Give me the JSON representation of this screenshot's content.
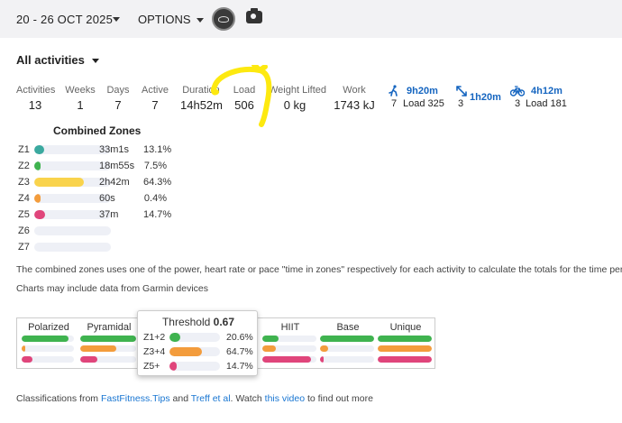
{
  "header": {
    "date_range": "20 - 26 OCT 2025",
    "options_label": "OPTIONS"
  },
  "filter": {
    "label": "All activities"
  },
  "stats": [
    {
      "label": "Activities",
      "value": "13"
    },
    {
      "label": "Weeks",
      "value": "1"
    },
    {
      "label": "Days",
      "value": "7"
    },
    {
      "label": "Active",
      "value": "7"
    },
    {
      "label": "Duration",
      "value": "14h52m"
    },
    {
      "label": "Load",
      "value": "506"
    },
    {
      "label": "Weight Lifted",
      "value": "0 kg"
    },
    {
      "label": "Work",
      "value": "1743 kJ"
    }
  ],
  "sports": [
    {
      "icon": "run-icon",
      "time": "9h20m",
      "count": "7",
      "load": "Load 325"
    },
    {
      "icon": "workout-icon",
      "time": "1h20m",
      "count": "3",
      "load": ""
    },
    {
      "icon": "bike-icon",
      "time": "4h12m",
      "count": "3",
      "load": "Load 181"
    }
  ],
  "combined_zones": {
    "title": "Combined Zones",
    "zones": [
      {
        "label": "Z1",
        "time": "33m1s",
        "pct": "13.1%",
        "fraction": 0.131,
        "color": "#3aa99f"
      },
      {
        "label": "Z2",
        "time": "18m55s",
        "pct": "7.5%",
        "fraction": 0.075,
        "color": "#3fb34f"
      },
      {
        "label": "Z3",
        "time": "2h42m",
        "pct": "64.3%",
        "fraction": 0.643,
        "color": "#f9d34c"
      },
      {
        "label": "Z4",
        "time": "60s",
        "pct": "0.4%",
        "fraction": 0.004,
        "color": "#f39c3c"
      },
      {
        "label": "Z5",
        "time": "37m",
        "pct": "14.7%",
        "fraction": 0.147,
        "color": "#e0457b"
      },
      {
        "label": "Z6",
        "time": "",
        "pct": "",
        "fraction": 0,
        "color": "#eef0f6"
      },
      {
        "label": "Z7",
        "time": "",
        "pct": "",
        "fraction": 0,
        "color": "#eef0f6"
      }
    ]
  },
  "notes": {
    "line1": "The combined zones uses one of the power, heart rate or pace \"time in zones\" respectively for each activity to calculate the totals for the time period",
    "line2": "Charts may include data from Garmin devices"
  },
  "classifications": [
    {
      "name": "Polarized",
      "bars": [
        {
          "fraction": 0.9,
          "color": "#3fb34f"
        },
        {
          "fraction": 0.05,
          "color": "#f39c3c"
        },
        {
          "fraction": 0.2,
          "color": "#e0457b"
        }
      ]
    },
    {
      "name": "Pyramidal",
      "bars": [
        {
          "fraction": 1.0,
          "color": "#3fb34f"
        },
        {
          "fraction": 0.65,
          "color": "#f39c3c"
        },
        {
          "fraction": 0.3,
          "color": "#e0457b"
        }
      ]
    },
    {
      "name": "HIIT",
      "bars": [
        {
          "fraction": 0.3,
          "color": "#3fb34f"
        },
        {
          "fraction": 0.25,
          "color": "#f39c3c"
        },
        {
          "fraction": 0.9,
          "color": "#e0457b"
        }
      ]
    },
    {
      "name": "Base",
      "bars": [
        {
          "fraction": 1.0,
          "color": "#3fb34f"
        },
        {
          "fraction": 0.15,
          "color": "#f39c3c"
        },
        {
          "fraction": 0.05,
          "color": "#e0457b"
        }
      ]
    },
    {
      "name": "Unique",
      "bars": [
        {
          "fraction": 1.0,
          "color": "#3fb34f"
        },
        {
          "fraction": 1.0,
          "color": "#f39c3c"
        },
        {
          "fraction": 1.0,
          "color": "#e0457b"
        }
      ]
    }
  ],
  "threshold_popup": {
    "title": "Threshold",
    "value": "0.67",
    "rows": [
      {
        "label": "Z1+2",
        "pct": "20.6%",
        "fraction": 0.206,
        "color": "#3fb34f"
      },
      {
        "label": "Z3+4",
        "pct": "64.7%",
        "fraction": 0.647,
        "color": "#f39c3c"
      },
      {
        "label": "Z5+",
        "pct": "14.7%",
        "fraction": 0.147,
        "color": "#e0457b"
      }
    ]
  },
  "footer": {
    "prefix": "Classifications from ",
    "link1": "FastFitness.Tips",
    "and": " and ",
    "link2": "Treff et al",
    "mid": ". Watch ",
    "link3": "this video",
    "suffix": " to find out more"
  }
}
